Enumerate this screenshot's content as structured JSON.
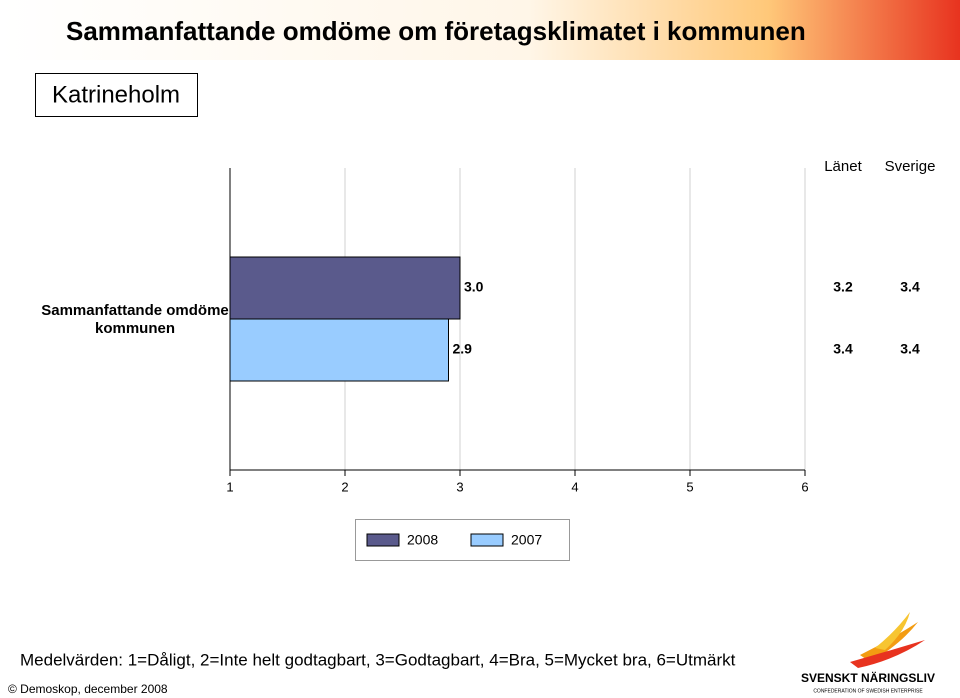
{
  "title": "Sammanfattande omdöme om företagsklimatet i kommunen",
  "subtitle": "Katrineholm",
  "chart_data": {
    "type": "bar",
    "orientation": "horizontal",
    "categories": [
      "Sammanfattande omdöme kommunen"
    ],
    "series": [
      {
        "name": "2008",
        "color": "#5a5a8c",
        "values": [
          3.0
        ],
        "value_labels": [
          "3.0"
        ]
      },
      {
        "name": "2007",
        "color": "#99ccff",
        "values": [
          2.9
        ],
        "value_labels": [
          "2.9"
        ]
      }
    ],
    "xlim": [
      1,
      6
    ],
    "xticks": [
      1,
      2,
      3,
      4,
      5,
      6
    ],
    "grid": true,
    "comparison": {
      "columns": [
        "Länet",
        "Sverige"
      ],
      "rows": [
        [
          3.2,
          3.4
        ],
        [
          3.4,
          3.4
        ]
      ]
    }
  },
  "footnote": "Medelvärden: 1=Dåligt, 2=Inte helt godtagbart, 3=Godtagbart, 4=Bra, 5=Mycket bra, 6=Utmärkt",
  "copyright": "© Demoskop, december 2008",
  "logo": {
    "name": "SVENSKT NÄRINGSLIV",
    "tagline": "CONFEDERATION OF SWEDISH ENTERPRISE"
  }
}
